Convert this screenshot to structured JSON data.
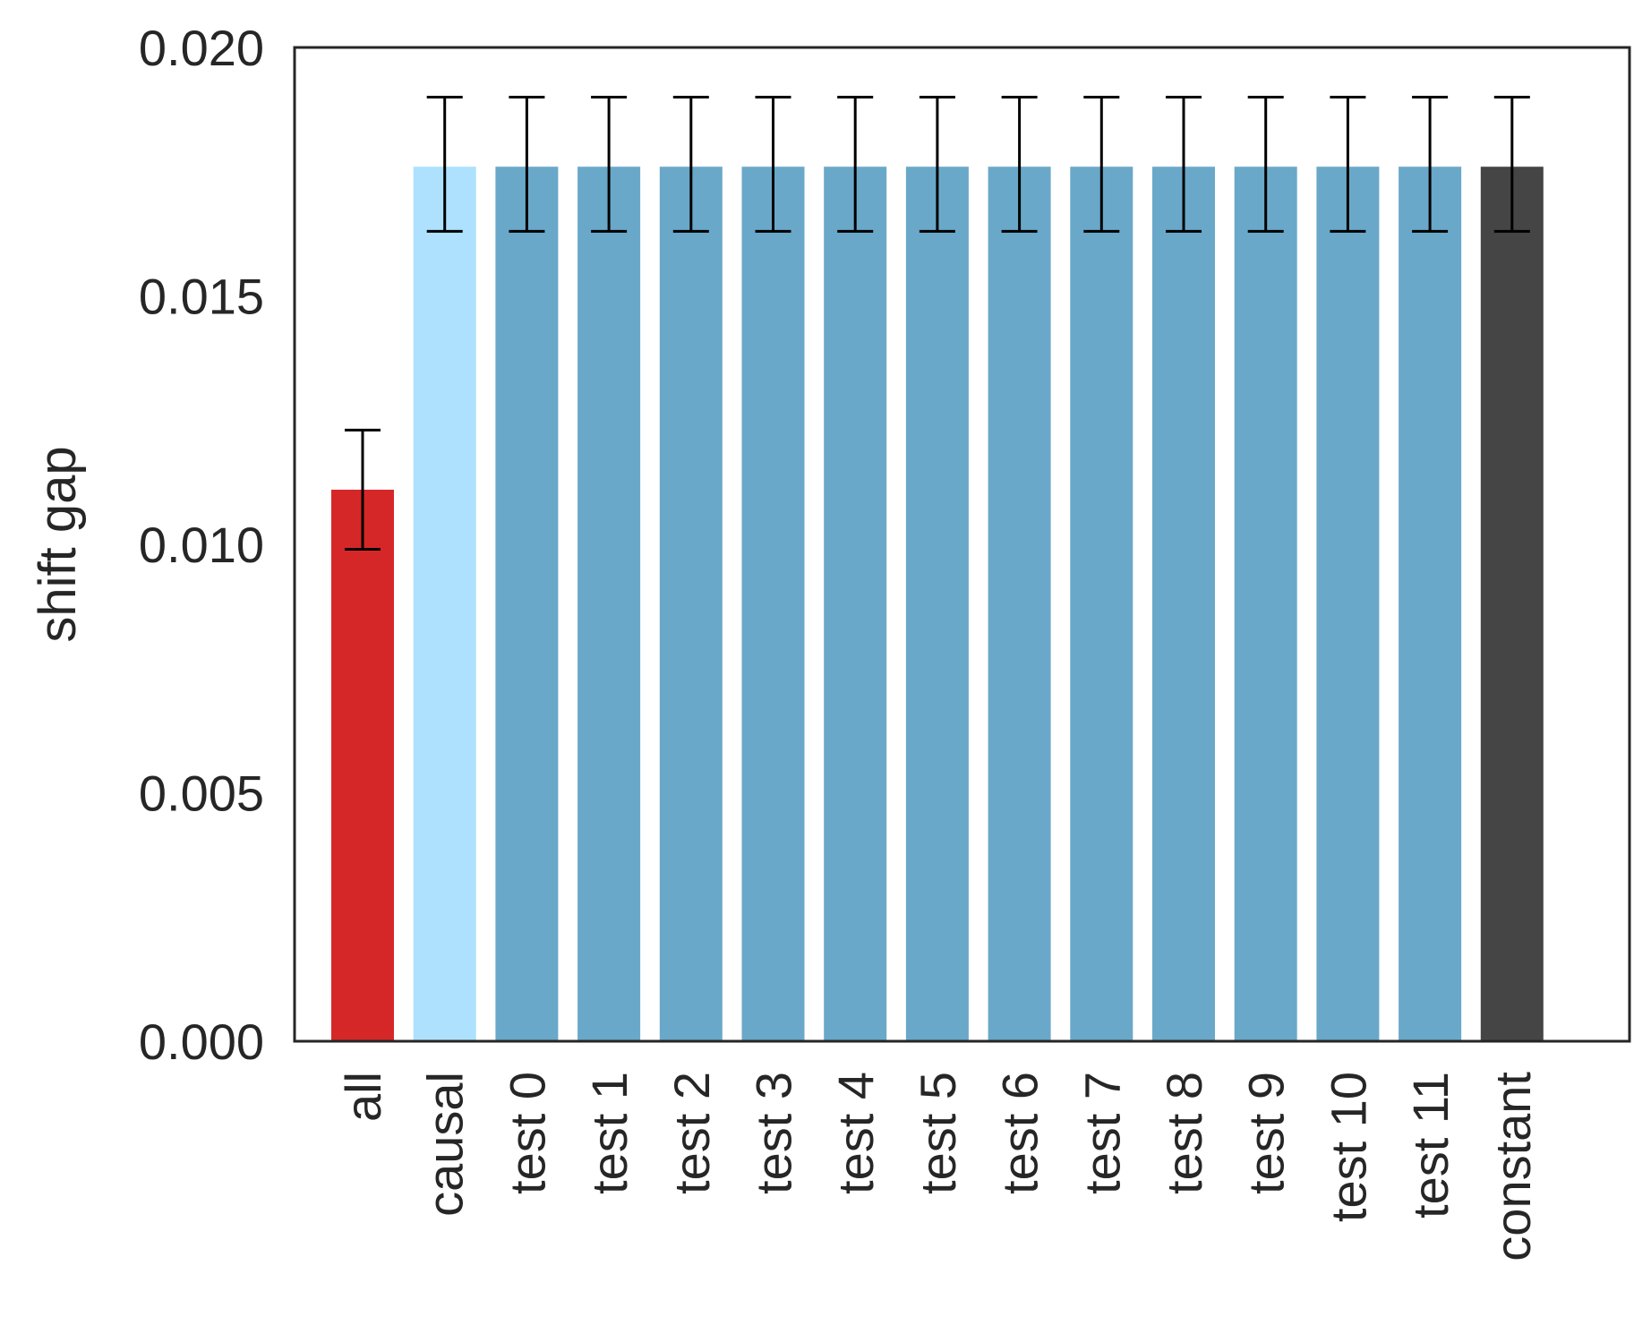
{
  "chart_data": {
    "type": "bar",
    "title": "",
    "xlabel": "",
    "ylabel": "shift gap",
    "ylim": [
      0,
      0.02
    ],
    "yticks": [
      0.0,
      0.005,
      0.01,
      0.015,
      0.02
    ],
    "ytick_labels": [
      "0.000",
      "0.005",
      "0.010",
      "0.015",
      "0.020"
    ],
    "categories": [
      "all",
      "causal",
      "test 0",
      "test 1",
      "test 2",
      "test 3",
      "test 4",
      "test 5",
      "test 6",
      "test 7",
      "test 8",
      "test 9",
      "test 10",
      "test 11",
      "constant"
    ],
    "values": [
      0.0111,
      0.0176,
      0.0176,
      0.0176,
      0.0176,
      0.0176,
      0.0176,
      0.0176,
      0.0176,
      0.0176,
      0.0176,
      0.0176,
      0.0176,
      0.0176,
      0.0176
    ],
    "error_low": [
      0.0099,
      0.0163,
      0.0163,
      0.0163,
      0.0163,
      0.0163,
      0.0163,
      0.0163,
      0.0163,
      0.0163,
      0.0163,
      0.0163,
      0.0163,
      0.0163,
      0.0163
    ],
    "error_high": [
      0.0123,
      0.019,
      0.019,
      0.019,
      0.019,
      0.019,
      0.019,
      0.019,
      0.019,
      0.019,
      0.019,
      0.019,
      0.019,
      0.019,
      0.019
    ],
    "colors": [
      "#d62728",
      "#ade1fe",
      "#6aa8c9",
      "#6aa8c9",
      "#6aa8c9",
      "#6aa8c9",
      "#6aa8c9",
      "#6aa8c9",
      "#6aa8c9",
      "#6aa8c9",
      "#6aa8c9",
      "#6aa8c9",
      "#6aa8c9",
      "#6aa8c9",
      "#454545"
    ],
    "grid": false,
    "tick_label_rotation": -90
  }
}
